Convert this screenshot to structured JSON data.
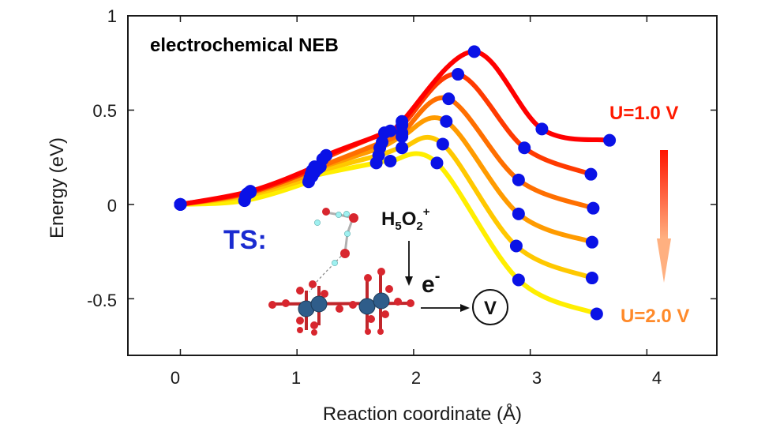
{
  "chart_data": {
    "type": "line",
    "title": "",
    "xlabel": "Reaction coordinate (Å)",
    "ylabel": "Energy (eV)",
    "xlim": [
      -0.45,
      4.6
    ],
    "ylim": [
      -0.8,
      1.0
    ],
    "x_ticks": [
      "0",
      "1",
      "2",
      "3",
      "4"
    ],
    "y_ticks": [
      "1",
      "0.5",
      "0",
      "-0.5"
    ],
    "grid": false,
    "series": [
      {
        "color": "#ff0000",
        "points": [
          [
            0,
            0
          ],
          [
            0.6,
            0.07
          ],
          [
            1.15,
            0.2
          ],
          [
            1.25,
            0.26
          ],
          [
            1.8,
            0.39
          ],
          [
            1.9,
            0.44
          ],
          [
            2.52,
            0.81
          ],
          [
            3.1,
            0.4
          ],
          [
            3.68,
            0.34
          ]
        ]
      },
      {
        "color": "#ff3a00",
        "points": [
          [
            0,
            0
          ],
          [
            0.6,
            0.065
          ],
          [
            1.15,
            0.19
          ],
          [
            1.22,
            0.24
          ],
          [
            1.75,
            0.38
          ],
          [
            1.9,
            0.42
          ],
          [
            2.38,
            0.69
          ],
          [
            2.95,
            0.3
          ],
          [
            3.52,
            0.16
          ]
        ]
      },
      {
        "color": "#ff6f00",
        "points": [
          [
            0,
            0
          ],
          [
            0.58,
            0.06
          ],
          [
            1.13,
            0.18
          ],
          [
            1.2,
            0.2
          ],
          [
            1.73,
            0.33
          ],
          [
            1.9,
            0.38
          ],
          [
            2.3,
            0.56
          ],
          [
            2.9,
            0.13
          ],
          [
            3.54,
            -0.02
          ]
        ]
      },
      {
        "color": "#ff9b00",
        "points": [
          [
            0,
            0
          ],
          [
            0.57,
            0.055
          ],
          [
            1.12,
            0.16
          ],
          [
            1.18,
            0.19
          ],
          [
            1.71,
            0.3
          ],
          [
            1.9,
            0.36
          ],
          [
            2.28,
            0.44
          ],
          [
            2.9,
            -0.05
          ],
          [
            3.53,
            -0.2
          ]
        ]
      },
      {
        "color": "#ffc800",
        "points": [
          [
            0,
            0
          ],
          [
            0.56,
            0.045
          ],
          [
            1.11,
            0.14
          ],
          [
            1.15,
            0.17
          ],
          [
            1.7,
            0.26
          ],
          [
            1.9,
            0.3
          ],
          [
            2.25,
            0.32
          ],
          [
            2.88,
            -0.22
          ],
          [
            3.53,
            -0.39
          ]
        ]
      },
      {
        "color": "#ffee00",
        "points": [
          [
            0,
            0
          ],
          [
            0.55,
            0.02
          ],
          [
            1.1,
            0.12
          ],
          [
            1.13,
            0.15
          ],
          [
            1.68,
            0.22
          ],
          [
            1.8,
            0.23
          ],
          [
            2.2,
            0.22
          ],
          [
            2.9,
            -0.4
          ],
          [
            3.57,
            -0.58
          ]
        ]
      }
    ],
    "annotations": {
      "title_label": "electrochemical NEB",
      "u_high": "U=1.0 V",
      "u_low": "U=2.0 V",
      "ts_label": "TS:",
      "h5o2_base": "H",
      "h5o2_sub1": "5",
      "h5o2_mid": "O",
      "h5o2_sub2": "2",
      "h5o2_sup": "+",
      "electron_base": "e",
      "electron_sup": "-",
      "voltmeter": "V"
    },
    "colors": {
      "marker": "#0a12e6",
      "ts_label": "#1a2bd0",
      "u_high": "#ff1a00",
      "u_low": "#ff8a2a",
      "arrow_top": "#ff1500",
      "arrow_bottom": "#ffb080"
    }
  }
}
